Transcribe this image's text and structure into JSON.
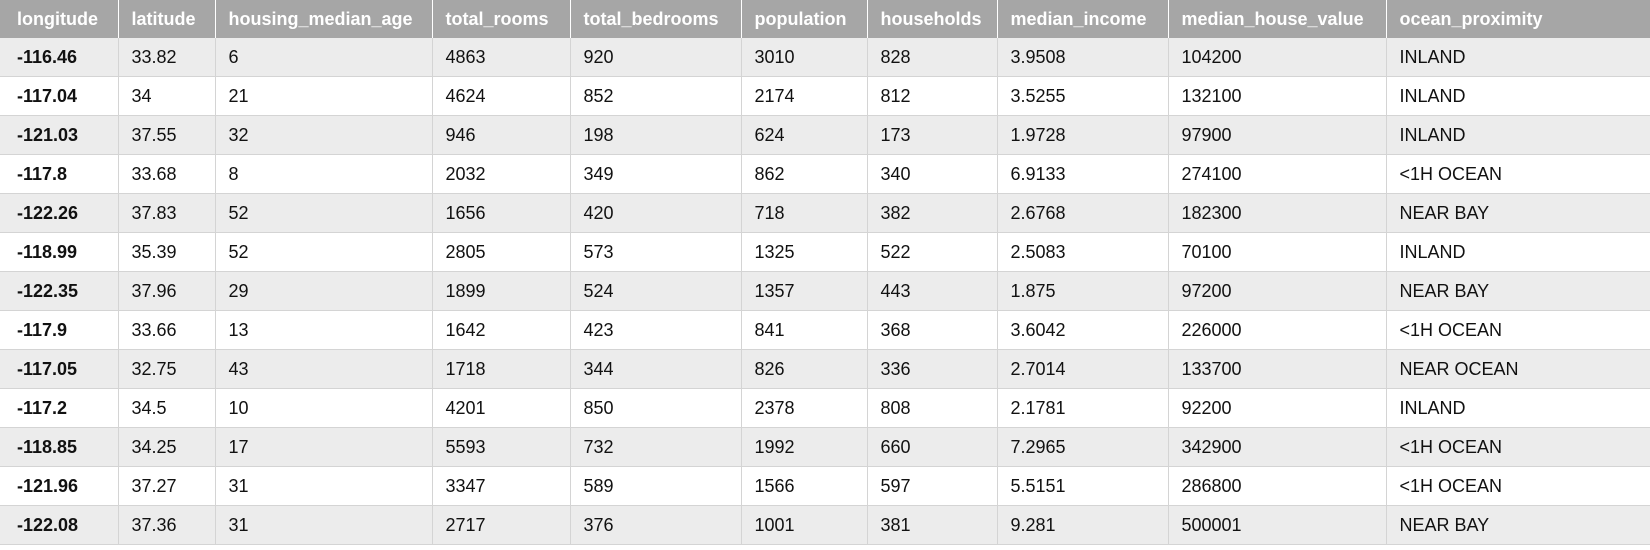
{
  "table": {
    "columns": [
      "longitude",
      "latitude",
      "housing_median_age",
      "total_rooms",
      "total_bedrooms",
      "population",
      "households",
      "median_income",
      "median_house_value",
      "ocean_proximity"
    ],
    "rows": [
      [
        "-116.46",
        "33.82",
        "6",
        "4863",
        "920",
        "3010",
        "828",
        "3.9508",
        "104200",
        "INLAND"
      ],
      [
        "-117.04",
        "34",
        "21",
        "4624",
        "852",
        "2174",
        "812",
        "3.5255",
        "132100",
        "INLAND"
      ],
      [
        "-121.03",
        "37.55",
        "32",
        "946",
        "198",
        "624",
        "173",
        "1.9728",
        "97900",
        "INLAND"
      ],
      [
        "-117.8",
        "33.68",
        "8",
        "2032",
        "349",
        "862",
        "340",
        "6.9133",
        "274100",
        "<1H OCEAN"
      ],
      [
        "-122.26",
        "37.83",
        "52",
        "1656",
        "420",
        "718",
        "382",
        "2.6768",
        "182300",
        "NEAR BAY"
      ],
      [
        "-118.99",
        "35.39",
        "52",
        "2805",
        "573",
        "1325",
        "522",
        "2.5083",
        "70100",
        "INLAND"
      ],
      [
        "-122.35",
        "37.96",
        "29",
        "1899",
        "524",
        "1357",
        "443",
        "1.875",
        "97200",
        "NEAR BAY"
      ],
      [
        "-117.9",
        "33.66",
        "13",
        "1642",
        "423",
        "841",
        "368",
        "3.6042",
        "226000",
        "<1H OCEAN"
      ],
      [
        "-117.05",
        "32.75",
        "43",
        "1718",
        "344",
        "826",
        "336",
        "2.7014",
        "133700",
        "NEAR OCEAN"
      ],
      [
        "-117.2",
        "34.5",
        "10",
        "4201",
        "850",
        "2378",
        "808",
        "2.1781",
        "92200",
        "INLAND"
      ],
      [
        "-118.85",
        "34.25",
        "17",
        "5593",
        "732",
        "1992",
        "660",
        "7.2965",
        "342900",
        "<1H OCEAN"
      ],
      [
        "-121.96",
        "37.27",
        "31",
        "3347",
        "589",
        "1566",
        "597",
        "5.5151",
        "286800",
        "<1H OCEAN"
      ],
      [
        "-122.08",
        "37.36",
        "31",
        "2717",
        "376",
        "1001",
        "381",
        "9.281",
        "500001",
        "NEAR BAY"
      ]
    ]
  },
  "colors": {
    "header_bg": "#a6a6a6",
    "header_text": "#ffffff",
    "row_alt_bg": "#ececec",
    "row_bg": "#ffffff",
    "grid_line": "#d4d4d4"
  }
}
